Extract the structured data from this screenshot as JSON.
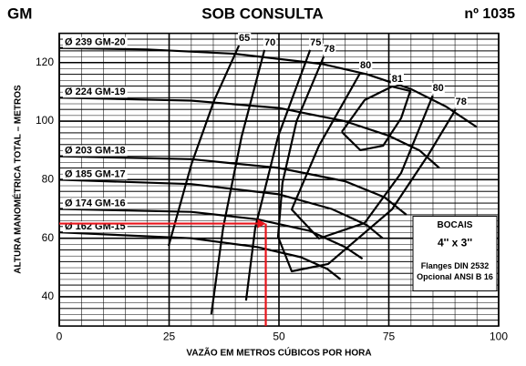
{
  "chart_data": {
    "type": "line",
    "title": "SOB CONSULTA",
    "left_title": "GM",
    "right_title": "nº 1035",
    "xlabel": "VAZÃO EM METROS CÚBICOS POR HORA",
    "ylabel": "ALTURA MANOMÉTRICA TOTAL – METROS",
    "xlim": [
      0,
      100
    ],
    "ylim": [
      30,
      130
    ],
    "xticks": [
      0,
      25,
      50,
      75,
      100
    ],
    "yticks": [
      40,
      60,
      80,
      100,
      120
    ],
    "grid": true,
    "series": [
      {
        "name": "Ø 239 GM-20",
        "color": "#000",
        "x": [
          0,
          20,
          40,
          60,
          70,
          80,
          88,
          95
        ],
        "values": [
          125,
          124.5,
          123,
          119.5,
          116,
          111,
          105,
          98
        ]
      },
      {
        "name": "Ø 224 GM-19",
        "color": "#000",
        "x": [
          0,
          30,
          50,
          65,
          75,
          82,
          86.5
        ],
        "values": [
          108,
          107,
          104.5,
          100,
          95,
          90,
          84
        ]
      },
      {
        "name": "Ø 203 GM-18",
        "color": "#000",
        "x": [
          0,
          30,
          50,
          65,
          74,
          79
        ],
        "values": [
          88,
          87,
          84,
          79.5,
          74,
          68
        ]
      },
      {
        "name": "Ø 185 GM-17",
        "color": "#000",
        "x": [
          0,
          30,
          50,
          62,
          70,
          73.6
        ],
        "values": [
          80,
          78.5,
          75,
          70,
          64.5,
          60
        ]
      },
      {
        "name": "Ø 174 GM-16",
        "color": "#000",
        "x": [
          0,
          30,
          45,
          57,
          65,
          69
        ],
        "values": [
          70,
          69,
          66.5,
          62.5,
          57,
          53
        ]
      },
      {
        "name": "Ø 162 GM-15",
        "color": "#000",
        "x": [
          0,
          30,
          45,
          55,
          61,
          64
        ],
        "values": [
          62,
          60,
          57,
          53.5,
          49.5,
          46
        ]
      }
    ],
    "efficiency": [
      {
        "name": "65",
        "color": "#000",
        "x": [
          24.9,
          30.1,
          35.3,
          40.9
        ],
        "values": [
          57.4,
          85.4,
          107.2,
          125.8
        ]
      },
      {
        "name": "70",
        "color": "#000",
        "x": [
          34.6,
          37.3,
          41.5,
          46.7
        ],
        "values": [
          34,
          63.6,
          94.7,
          124.3
        ]
      },
      {
        "name": "75",
        "color": "#000",
        "x": [
          42.5,
          44.6,
          49.8,
          57.1
        ],
        "values": [
          38.7,
          63.6,
          94.7,
          124.3
        ]
      },
      {
        "name": "78",
        "color": "#000",
        "x": [
          60.2,
          54,
          50.8,
          49.8,
          52.9,
          61.2,
          75.7,
          84,
          90.2
        ],
        "values": [
          122.1,
          100,
          79,
          60.5,
          48.7,
          51.2,
          69.8,
          88.5,
          104
        ]
      },
      {
        "name": "80",
        "color": "#000",
        "x": [
          68.5,
          59.1,
          52.9,
          59.1,
          69.5,
          77.8,
          85
        ],
        "values": [
          116.5,
          91.6,
          69.8,
          59.9,
          65.2,
          82.3,
          108.7
        ]
      },
      {
        "name": "81",
        "color": "#000",
        "x": [
          64.3,
          69.5,
          75.7,
          79.9,
          77.8,
          73.7,
          68.5,
          64.3
        ],
        "values": [
          96.3,
          107.2,
          111.8,
          110.3,
          101,
          91.6,
          90.1,
          96.3
        ]
      }
    ],
    "marker": {
      "x": 47,
      "y": 65,
      "color": "#e8141b"
    },
    "box": {
      "title": "BOCAIS",
      "size": "4'' x 3''",
      "line1": "Flanges DIN 2532",
      "line2": "Opcional ANSI B 16"
    }
  }
}
